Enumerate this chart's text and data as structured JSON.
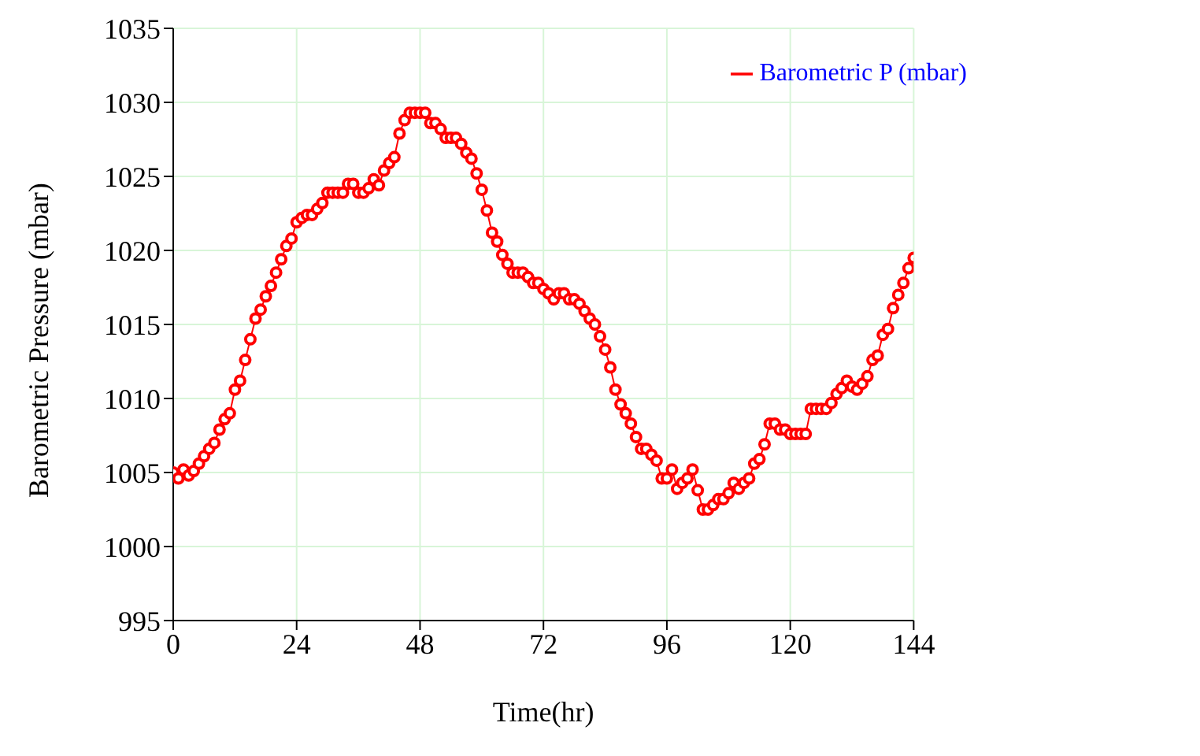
{
  "chart_data": {
    "type": "line",
    "xlabel": "Time(hr)",
    "ylabel": "Barometric Pressure (mbar)",
    "x": [
      0,
      1,
      2,
      3,
      4,
      5,
      6,
      7,
      8,
      9,
      10,
      11,
      12,
      13,
      14,
      15,
      16,
      17,
      18,
      19,
      20,
      21,
      22,
      23,
      24,
      25,
      26,
      27,
      28,
      29,
      30,
      31,
      32,
      33,
      34,
      35,
      36,
      37,
      38,
      39,
      40,
      41,
      42,
      43,
      44,
      45,
      46,
      47,
      48,
      49,
      50,
      51,
      52,
      53,
      54,
      55,
      56,
      57,
      58,
      59,
      60,
      61,
      62,
      63,
      64,
      65,
      66,
      67,
      68,
      69,
      70,
      71,
      72,
      73,
      74,
      75,
      76,
      77,
      78,
      79,
      80,
      81,
      82,
      83,
      84,
      85,
      86,
      87,
      88,
      89,
      90,
      91,
      92,
      93,
      94,
      95,
      96,
      97,
      98,
      99,
      100,
      101,
      102,
      103,
      104,
      105,
      106,
      107,
      108,
      109,
      110,
      111,
      112,
      113,
      114,
      115,
      116,
      117,
      118,
      119,
      120,
      121,
      122,
      123,
      124,
      125,
      126,
      127,
      128,
      129,
      130,
      131,
      132,
      133,
      134,
      135,
      136,
      137,
      138,
      139,
      140,
      141,
      142,
      143,
      144
    ],
    "series": [
      {
        "name": "Barometric P (mbar)",
        "color": "#ff0000",
        "values": [
          1005,
          1004.6,
          1005.2,
          1004.8,
          1005.1,
          1005.6,
          1006.1,
          1006.6,
          1007,
          1007.9,
          1008.6,
          1009,
          1010.6,
          1011.2,
          1012.6,
          1014,
          1015.4,
          1016,
          1016.9,
          1017.6,
          1018.5,
          1019.4,
          1020.3,
          1020.8,
          1021.9,
          1022.2,
          1022.4,
          1022.4,
          1022.8,
          1023.2,
          1023.9,
          1023.9,
          1023.9,
          1023.9,
          1024.5,
          1024.5,
          1023.9,
          1023.9,
          1024.2,
          1024.8,
          1024.4,
          1025.4,
          1025.9,
          1026.3,
          1027.9,
          1028.8,
          1029.3,
          1029.3,
          1029.3,
          1029.3,
          1028.6,
          1028.6,
          1028.2,
          1027.6,
          1027.6,
          1027.6,
          1027.2,
          1026.6,
          1026.2,
          1025.2,
          1024.1,
          1022.7,
          1021.2,
          1020.6,
          1019.7,
          1019.1,
          1018.5,
          1018.5,
          1018.5,
          1018.2,
          1017.8,
          1017.8,
          1017.4,
          1017.1,
          1016.7,
          1017.1,
          1017.1,
          1016.7,
          1016.7,
          1016.4,
          1015.9,
          1015.4,
          1015,
          1014.2,
          1013.3,
          1012.1,
          1010.6,
          1009.6,
          1009,
          1008.3,
          1007.4,
          1006.6,
          1006.6,
          1006.2,
          1005.8,
          1004.6,
          1004.6,
          1005.2,
          1003.9,
          1004.3,
          1004.6,
          1005.2,
          1003.8,
          1002.5,
          1002.5,
          1002.8,
          1003.2,
          1003.2,
          1003.6,
          1004.3,
          1003.9,
          1004.3,
          1004.6,
          1005.6,
          1005.9,
          1006.9,
          1008.3,
          1008.3,
          1007.9,
          1007.9,
          1007.6,
          1007.6,
          1007.6,
          1007.6,
          1009.3,
          1009.3,
          1009.3,
          1009.3,
          1009.7,
          1010.3,
          1010.7,
          1011.2,
          1010.8,
          1010.6,
          1011,
          1011.5,
          1012.6,
          1012.9,
          1014.3,
          1014.7,
          1016.1,
          1017,
          1017.8,
          1018.8,
          1019.5
        ]
      }
    ],
    "xlim": [
      0,
      144
    ],
    "xticks": [
      0,
      24,
      48,
      72,
      96,
      120,
      144
    ],
    "ylim": [
      995,
      1035
    ],
    "yticks": [
      995,
      1000,
      1005,
      1010,
      1015,
      1020,
      1025,
      1030,
      1035
    ],
    "grid": true,
    "legend": "top right",
    "marker": "circle",
    "line_style": "solid"
  }
}
